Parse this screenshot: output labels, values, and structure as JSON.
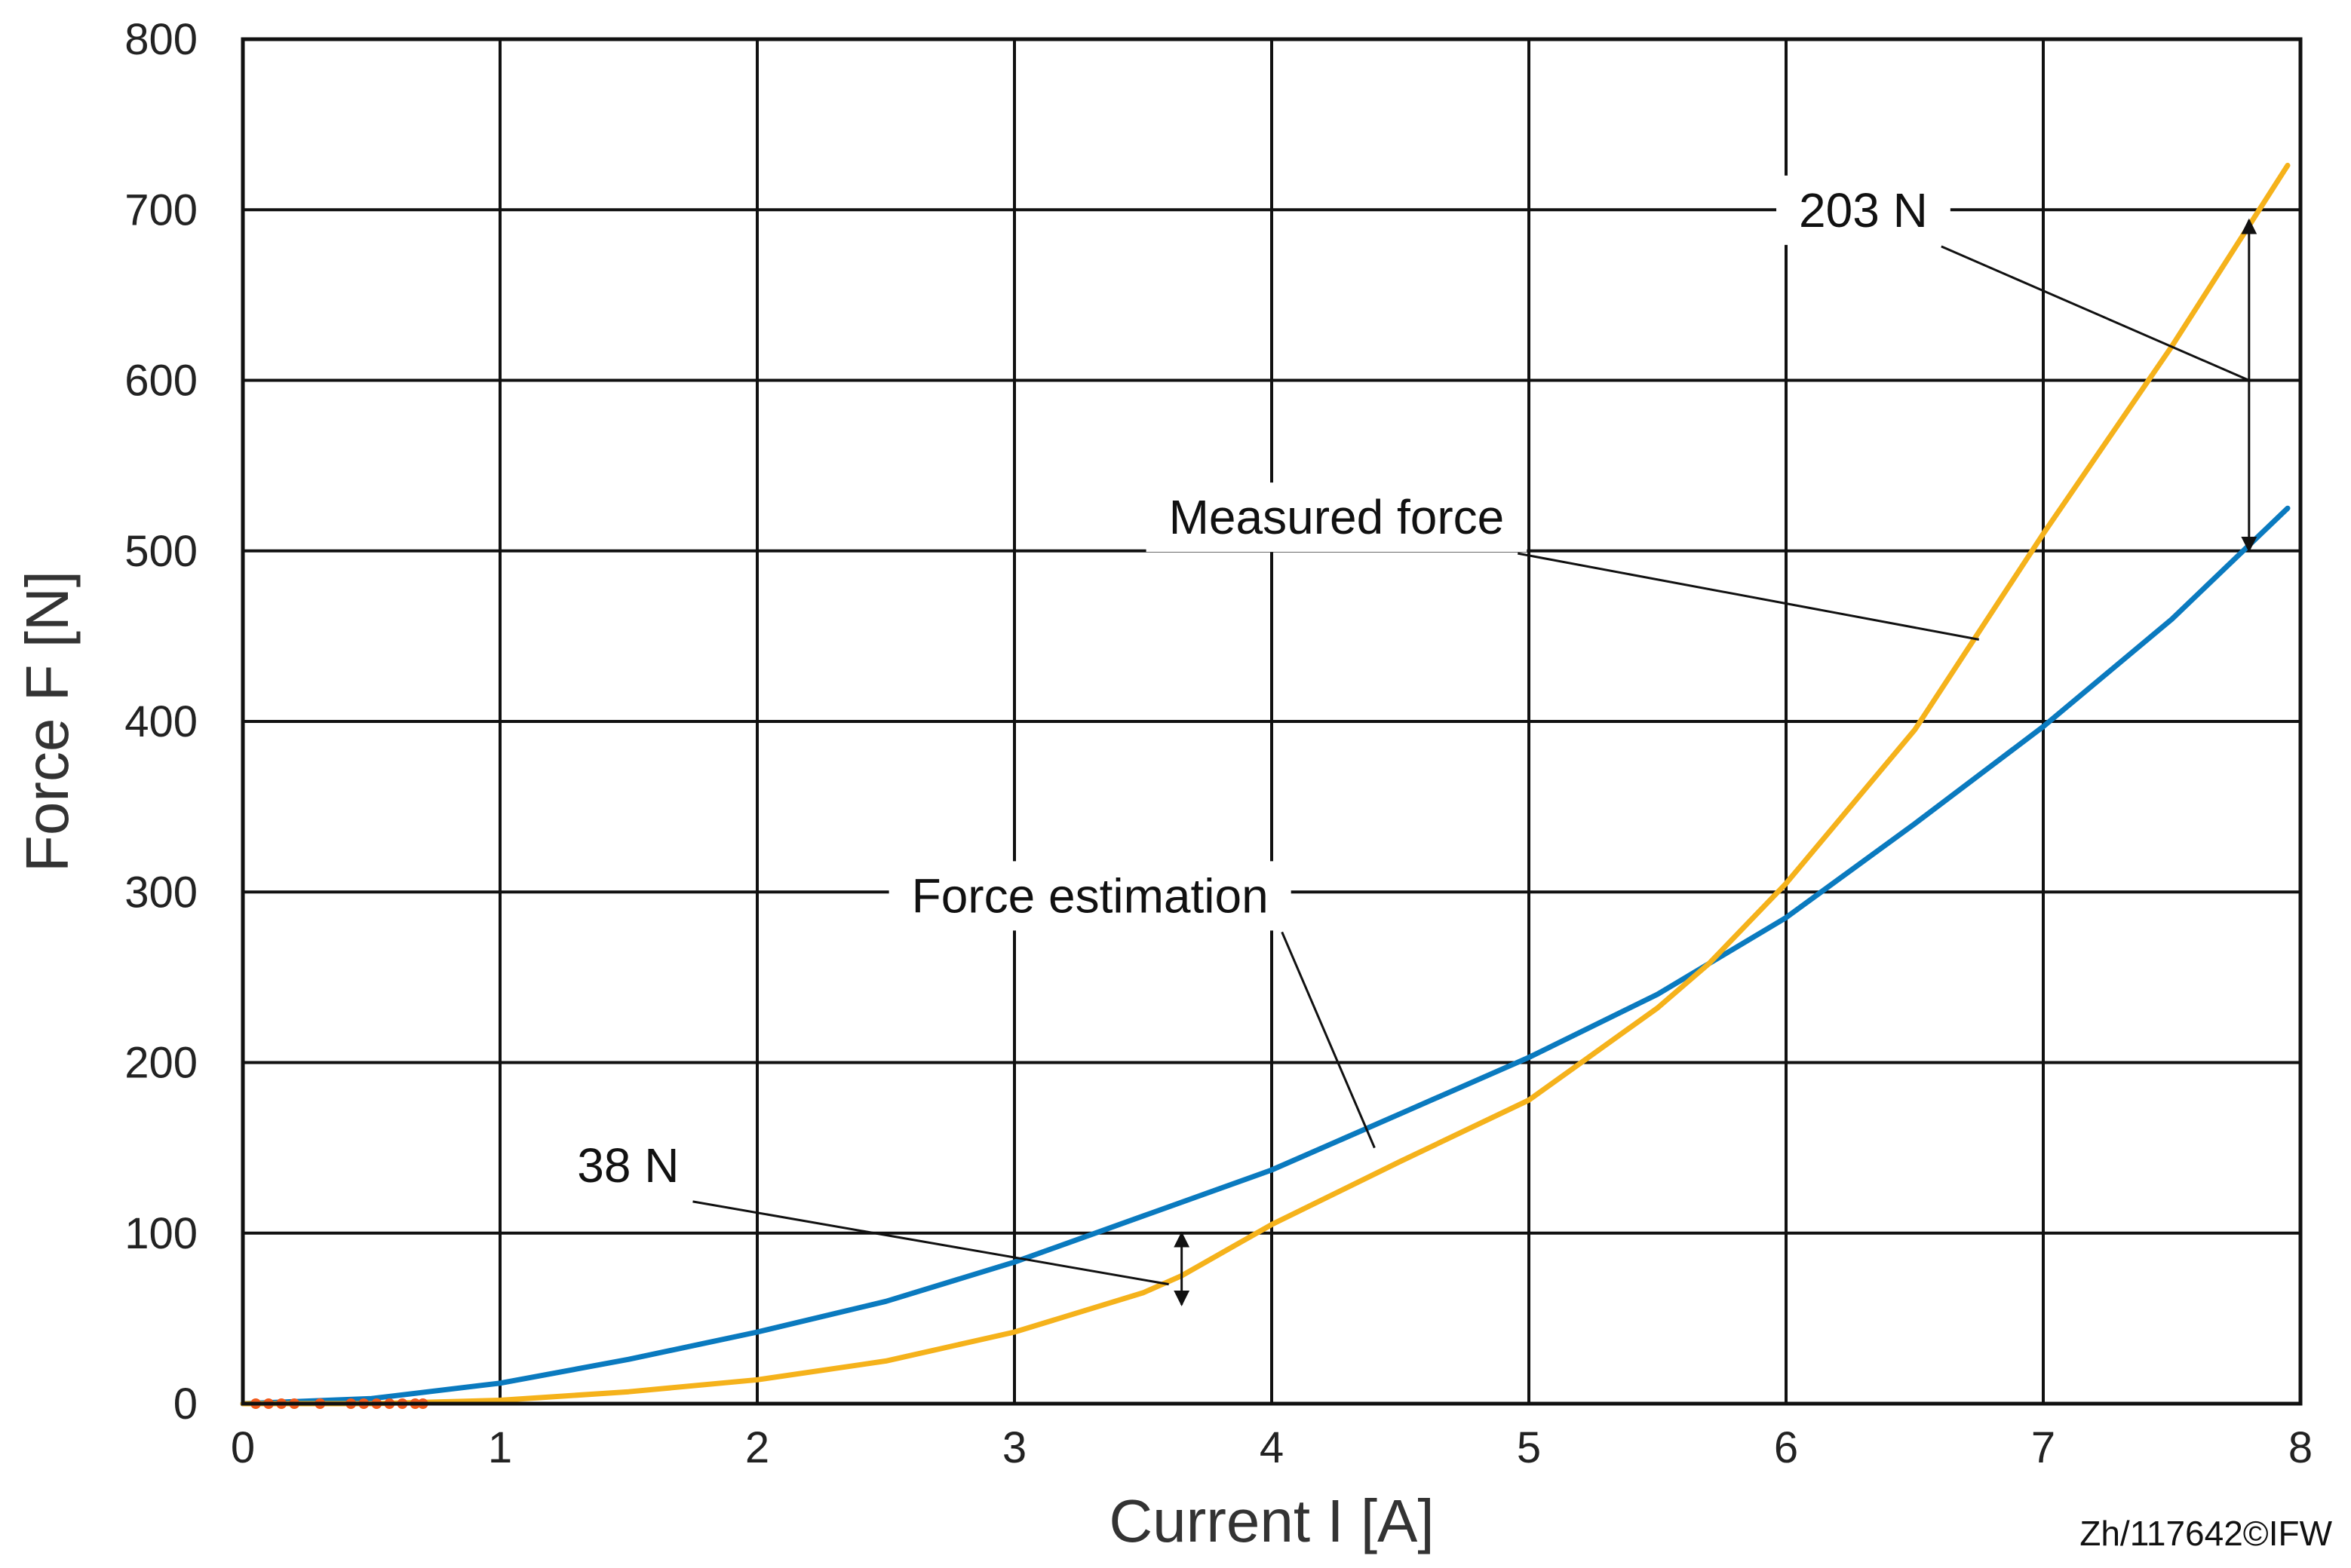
{
  "chart_data": {
    "type": "line",
    "title": "",
    "xlabel": "Current I [A]",
    "ylabel": "Force F [N]",
    "xlim": [
      0,
      8
    ],
    "ylim": [
      0,
      800
    ],
    "xticks": [
      0,
      1,
      2,
      3,
      4,
      5,
      6,
      7,
      8
    ],
    "yticks": [
      0,
      100,
      200,
      300,
      400,
      500,
      600,
      700,
      800
    ],
    "grid": true,
    "series": [
      {
        "color": "#0a7abf",
        "x": [
          0.0,
          0.5,
          1.0,
          1.5,
          2.0,
          2.5,
          3.0,
          3.5,
          4.0,
          4.5,
          5.0,
          5.5,
          6.0,
          6.5,
          7.0,
          7.5,
          7.95
        ],
        "y": [
          0,
          3,
          12,
          26,
          42,
          60,
          83,
          110,
          137,
          170,
          203,
          240,
          285,
          340,
          397,
          460,
          525
        ]
      },
      {
        "color": "#f5b21b",
        "x": [
          0.0,
          0.5,
          1.0,
          1.5,
          2.0,
          2.5,
          3.0,
          3.5,
          3.65,
          4.0,
          4.5,
          5.0,
          5.5,
          5.7,
          6.0,
          6.5,
          7.0,
          7.5,
          7.95
        ],
        "y": [
          0,
          0,
          2,
          7,
          14,
          25,
          42,
          65,
          75,
          105,
          142,
          178,
          232,
          258,
          305,
          395,
          510,
          620,
          726
        ]
      }
    ],
    "markers": {
      "color": "#f25a1b",
      "x": [
        0.05,
        0.1,
        0.15,
        0.2,
        0.3,
        0.42,
        0.47,
        0.52,
        0.57,
        0.62,
        0.67,
        0.7
      ],
      "y": [
        0,
        0,
        0,
        0,
        0,
        0,
        0,
        0,
        0,
        0,
        0,
        0
      ]
    },
    "annotations": [
      {
        "text": "Measured force",
        "label_x": 3.6,
        "label_y": 510,
        "target_x": 6.75,
        "target_y": 448
      },
      {
        "text": "Force estimation",
        "label_x": 2.6,
        "label_y": 288,
        "target_x": 4.4,
        "target_y": 150
      },
      {
        "text": "203 N",
        "label_x": 6.05,
        "label_y": 690,
        "target_x": 7.8,
        "target_y": 600,
        "arrow_x": 7.8,
        "arrow_from": 500,
        "arrow_to": 694
      },
      {
        "text": "38 N",
        "label_x": 1.3,
        "label_y": 130,
        "target_x": 3.6,
        "target_y": 70,
        "arrow_x": 3.65,
        "arrow_from": 58,
        "arrow_to": 100
      }
    ],
    "credit": "Zh/117642©IFW"
  }
}
